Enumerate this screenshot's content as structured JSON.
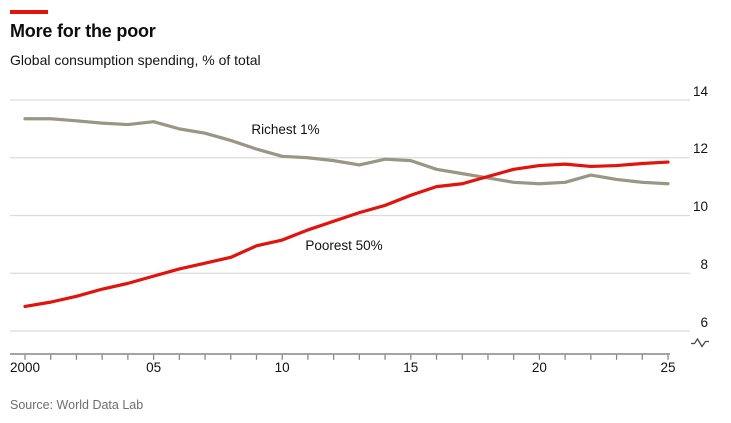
{
  "colors": {
    "accent": "#e3120b",
    "richest_line": "#9a9683",
    "poorest_line": "#e3120b",
    "grid": "#dcdcdc",
    "axis": "#858585",
    "axis_break": "#4a4a4a",
    "text": "#121212",
    "muted_text": "#6e6e6e"
  },
  "header": {
    "title": "More for the poor",
    "subtitle": "Global consumption spending, % of total"
  },
  "source": "Source: World Data Lab",
  "chart_data": {
    "type": "line",
    "title": "More for the poor",
    "subtitle": "Global consumption spending, % of total",
    "xlim": [
      2000,
      2025
    ],
    "ylim": [
      6,
      14
    ],
    "grid": "horizontal",
    "axis_break": true,
    "legend_position": "inline-labels",
    "x": [
      2000,
      2001,
      2002,
      2003,
      2004,
      2005,
      2006,
      2007,
      2008,
      2009,
      2010,
      2011,
      2012,
      2013,
      2014,
      2015,
      2016,
      2017,
      2018,
      2019,
      2020,
      2021,
      2022,
      2023,
      2024,
      2025
    ],
    "series": [
      {
        "name": "Richest 1%",
        "color": "#9a9683",
        "values": [
          13.35,
          13.35,
          13.28,
          13.2,
          13.15,
          13.25,
          13.0,
          12.85,
          12.6,
          12.3,
          12.05,
          12.0,
          11.9,
          11.75,
          11.95,
          11.9,
          11.6,
          11.45,
          11.3,
          11.15,
          11.1,
          11.15,
          11.4,
          11.25,
          11.15,
          11.1
        ]
      },
      {
        "name": "Poorest 50%",
        "color": "#e3120b",
        "values": [
          6.85,
          7.0,
          7.2,
          7.45,
          7.65,
          7.9,
          8.15,
          8.35,
          8.55,
          8.95,
          9.15,
          9.5,
          9.8,
          10.1,
          10.35,
          10.7,
          11.0,
          11.1,
          11.35,
          11.6,
          11.73,
          11.78,
          11.7,
          11.73,
          11.8,
          11.85
        ]
      }
    ],
    "yticks": [
      6,
      8,
      10,
      12,
      14
    ],
    "ytick_labels": [
      "6",
      "8",
      "10",
      "12",
      "14"
    ],
    "xticks": [
      2000,
      2005,
      2010,
      2015,
      2020,
      2025
    ],
    "xtick_labels": [
      "2000",
      "05",
      "10",
      "15",
      "20",
      "25"
    ],
    "annotations": [
      {
        "text": "Richest 1%",
        "year": 2008.8,
        "value": 12.95
      },
      {
        "text": "Poorest 50%",
        "year": 2010.9,
        "value": 8.95
      }
    ]
  }
}
